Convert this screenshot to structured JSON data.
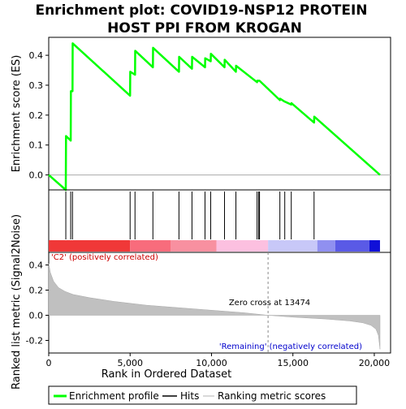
{
  "chart_data": {
    "type": "line",
    "title_line1": "Enrichment plot: COVID19-NSP12 PROTEIN",
    "title_line2": "HOST PPI FROM KROGAN",
    "es_panel": {
      "ylabel": "Enrichment score (ES)",
      "ylim": [
        -0.05,
        0.46
      ],
      "yticks": [
        0.0,
        0.1,
        0.2,
        0.3,
        0.4
      ],
      "ytick_labels": [
        "0.0",
        "0.1",
        "0.2",
        "0.3",
        "0.4"
      ],
      "series": [
        {
          "name": "Enrichment profile",
          "color": "#00ff00",
          "x": [
            0,
            1050,
            1060,
            1350,
            1360,
            1460,
            1470,
            5000,
            5010,
            5300,
            5310,
            6400,
            6410,
            8000,
            8010,
            8800,
            8810,
            9600,
            9610,
            9950,
            9960,
            10800,
            10810,
            11500,
            11510,
            12800,
            12810,
            12950,
            14200,
            14210,
            14500,
            14510,
            14900,
            14910,
            16300,
            16310,
            20350
          ],
          "y": [
            0.0,
            -0.05,
            0.13,
            0.115,
            0.28,
            0.28,
            0.44,
            0.265,
            0.345,
            0.335,
            0.415,
            0.36,
            0.425,
            0.345,
            0.395,
            0.355,
            0.395,
            0.36,
            0.39,
            0.38,
            0.405,
            0.36,
            0.385,
            0.345,
            0.365,
            0.31,
            0.315,
            0.315,
            0.25,
            0.255,
            0.245,
            0.245,
            0.235,
            0.24,
            0.175,
            0.195,
            0.0
          ]
        }
      ]
    },
    "hits": {
      "name": "Hits",
      "positions": [
        1050,
        1350,
        1460,
        5000,
        5300,
        6400,
        8000,
        8800,
        9600,
        9950,
        10800,
        11500,
        12800,
        12900,
        12950,
        14200,
        14500,
        14900,
        16300
      ]
    },
    "colorbar": {
      "segments": [
        {
          "from": 0,
          "to": 5000,
          "color": "#f03838"
        },
        {
          "from": 5000,
          "to": 7500,
          "color": "#f86c7c"
        },
        {
          "from": 7500,
          "to": 10300,
          "color": "#f890a0"
        },
        {
          "from": 10300,
          "to": 13474,
          "color": "#fcc0e0"
        },
        {
          "from": 13474,
          "to": 16500,
          "color": "#c8c8f8"
        },
        {
          "from": 16500,
          "to": 17600,
          "color": "#9090f0"
        },
        {
          "from": 17600,
          "to": 19700,
          "color": "#5a5ae6"
        },
        {
          "from": 19700,
          "to": 20350,
          "color": "#1010d8"
        }
      ]
    },
    "metric_panel": {
      "name": "Ranking metric scores",
      "ylabel": "Ranked list metric (Signal2Noise)",
      "ylim": [
        -0.3,
        0.5
      ],
      "yticks": [
        -0.2,
        0.0,
        0.2,
        0.4
      ],
      "ytick_labels": [
        "-0.2",
        "0.0",
        "0.2",
        "0.4"
      ],
      "x": [
        0,
        100,
        300,
        600,
        1000,
        1500,
        2500,
        4000,
        6000,
        8000,
        10000,
        12000,
        13474,
        15000,
        17000,
        18500,
        19300,
        19800,
        20100,
        20250,
        20350
      ],
      "y": [
        0.41,
        0.34,
        0.27,
        0.22,
        0.19,
        0.165,
        0.14,
        0.11,
        0.08,
        0.06,
        0.04,
        0.02,
        0.0,
        -0.015,
        -0.03,
        -0.045,
        -0.06,
        -0.08,
        -0.11,
        -0.16,
        -0.27
      ],
      "zero_cross": 13474,
      "zero_cross_label": "Zero cross at 13474",
      "pos_label": "'C2' (positively correlated)",
      "neg_label": "'Remaining' (negatively correlated)"
    },
    "xaxis": {
      "label": "Rank in Ordered Dataset",
      "xlim": [
        0,
        21000
      ],
      "ticks": [
        0,
        5000,
        10000,
        15000,
        20000
      ],
      "tick_labels": [
        "0",
        "5,000",
        "10,000",
        "15,000",
        "20,000"
      ]
    },
    "legend_entries": [
      "Enrichment profile",
      "Hits",
      "Ranking metric scores"
    ],
    "legend_placement": "bottom"
  }
}
